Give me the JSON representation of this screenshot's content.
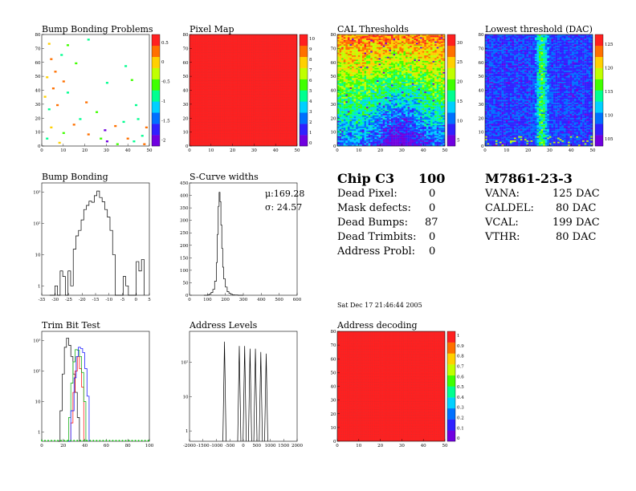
{
  "timestamp": "Sat Dec 17 21:46:44 2005",
  "chip": {
    "name": "Chip C3",
    "number": "100"
  },
  "module": {
    "name": "M7861-23-3"
  },
  "summary": [
    {
      "label": "Dead Pixel:",
      "value": "0"
    },
    {
      "label": "Mask defects:",
      "value": "0"
    },
    {
      "label": "Dead Bumps:",
      "value": "87"
    },
    {
      "label": "Dead Trimbits:",
      "value": "0"
    },
    {
      "label": "Address Probl:",
      "value": "0"
    }
  ],
  "dac_settings": [
    {
      "label": "VANA:",
      "value": "125 DAC"
    },
    {
      "label": "CALDEL:",
      "value": "80 DAC"
    },
    {
      "label": "VCAL:",
      "value": "199 DAC"
    },
    {
      "label": "VTHR:",
      "value": "80 DAC"
    }
  ],
  "colors": {
    "palette": [
      "#7000e0",
      "#3020ff",
      "#0070ff",
      "#00d0ff",
      "#00ff90",
      "#40ff00",
      "#c0ff00",
      "#ffd000",
      "#ff7000",
      "#ff2020"
    ]
  },
  "chart_data": [
    {
      "id": "bump-bonding-problems",
      "type": "heatmap",
      "title": "Bump Bonding Problems",
      "x_ticks": [
        "0",
        "10",
        "20",
        "30",
        "40",
        "50"
      ],
      "y_ticks": [
        "0",
        "10",
        "20",
        "30",
        "40",
        "50",
        "60",
        "70",
        "80"
      ],
      "colorbar_ticks": [
        "-2",
        "-1.5",
        "-1",
        "-0.5",
        "0",
        "0.5"
      ],
      "xlim": [
        0,
        52
      ],
      "ylim": [
        0,
        80
      ],
      "zlim": [
        -2,
        0.8
      ],
      "background": "empty",
      "points": [
        {
          "x": 3,
          "y": 74,
          "z": 0.2
        },
        {
          "x": 9,
          "y": 66,
          "z": -0.8
        },
        {
          "x": 12,
          "y": 73,
          "z": -0.6
        },
        {
          "x": 4,
          "y": 63,
          "z": 0.3
        },
        {
          "x": 22,
          "y": 77,
          "z": -0.8
        },
        {
          "x": 16,
          "y": 60,
          "z": -0.6
        },
        {
          "x": 6,
          "y": 54,
          "z": 0.4
        },
        {
          "x": 40,
          "y": 58,
          "z": -0.8
        },
        {
          "x": 2,
          "y": 50,
          "z": 0.1
        },
        {
          "x": 10,
          "y": 47,
          "z": 0.3
        },
        {
          "x": 31,
          "y": 46,
          "z": -0.8
        },
        {
          "x": 43,
          "y": 48,
          "z": -0.6
        },
        {
          "x": 5,
          "y": 42,
          "z": 0.3
        },
        {
          "x": 1,
          "y": 36,
          "z": 0.2
        },
        {
          "x": 12,
          "y": 39,
          "z": -0.8
        },
        {
          "x": 7,
          "y": 30,
          "z": 0.5
        },
        {
          "x": 21,
          "y": 32,
          "z": 0.3
        },
        {
          "x": 3,
          "y": 27,
          "z": -0.7
        },
        {
          "x": 18,
          "y": 20,
          "z": -0.8
        },
        {
          "x": 39,
          "y": 18,
          "z": -0.8
        },
        {
          "x": 46,
          "y": 20,
          "z": -0.7
        },
        {
          "x": 35,
          "y": 15,
          "z": 0.3
        },
        {
          "x": 30,
          "y": 12,
          "z": -1.8
        },
        {
          "x": 4,
          "y": 14,
          "z": 0.2
        },
        {
          "x": 10,
          "y": 10,
          "z": -0.6
        },
        {
          "x": 22,
          "y": 9,
          "z": 0.3
        },
        {
          "x": 28,
          "y": 6,
          "z": -0.5
        },
        {
          "x": 31,
          "y": 4,
          "z": -2.0
        },
        {
          "x": 41,
          "y": 6,
          "z": 0.5
        },
        {
          "x": 48,
          "y": 8,
          "z": -0.8
        },
        {
          "x": 44,
          "y": 4,
          "z": -0.7
        },
        {
          "x": 2,
          "y": 6,
          "z": -0.7
        },
        {
          "x": 8,
          "y": 3,
          "z": 0.2
        },
        {
          "x": 15,
          "y": 16,
          "z": 0.4
        },
        {
          "x": 26,
          "y": 25,
          "z": -0.6
        },
        {
          "x": 50,
          "y": 14,
          "z": 0.3
        },
        {
          "x": 45,
          "y": 30,
          "z": -0.8
        },
        {
          "x": 49,
          "y": 2,
          "z": 0.4
        },
        {
          "x": 36,
          "y": 2,
          "z": -0.6
        }
      ]
    },
    {
      "id": "pixel-map",
      "type": "heatmap",
      "title": "Pixel Map",
      "x_ticks": [
        "0",
        "10",
        "20",
        "30",
        "40",
        "50"
      ],
      "y_ticks": [
        "0",
        "10",
        "20",
        "30",
        "40",
        "50",
        "60",
        "70",
        "80"
      ],
      "colorbar_ticks": [
        "0",
        "1",
        "2",
        "3",
        "4",
        "5",
        "6",
        "7",
        "8",
        "9",
        "10"
      ],
      "xlim": [
        0,
        52
      ],
      "ylim": [
        0,
        80
      ],
      "zlim": [
        0,
        10
      ],
      "fill": "uniform",
      "value": 10
    },
    {
      "id": "cal-thresholds",
      "type": "heatmap",
      "title": "CAL Thresholds",
      "x_ticks": [
        "0",
        "10",
        "20",
        "30",
        "40",
        "50"
      ],
      "y_ticks": [
        "0",
        "10",
        "20",
        "30",
        "40",
        "50",
        "60",
        "70",
        "80"
      ],
      "colorbar_ticks": [
        "5",
        "10",
        "15",
        "20",
        "25",
        "30"
      ],
      "xlim": [
        0,
        52
      ],
      "ylim": [
        0,
        80
      ],
      "zlim": [
        0,
        33
      ],
      "fill": "gradient",
      "pattern": "high-top-low-bottom"
    },
    {
      "id": "lowest-threshold",
      "type": "heatmap",
      "title": "Lowest threshold (DAC)",
      "x_ticks": [
        "0",
        "10",
        "20",
        "30",
        "40",
        "50"
      ],
      "y_ticks": [
        "0",
        "10",
        "20",
        "30",
        "40",
        "50",
        "60",
        "70",
        "80"
      ],
      "colorbar_ticks": [
        "105",
        "110",
        "115",
        "120",
        "125"
      ],
      "xlim": [
        0,
        52
      ],
      "ylim": [
        0,
        80
      ],
      "zlim": [
        100,
        127
      ],
      "fill": "gradient",
      "pattern": "low-with-central-stripe"
    },
    {
      "id": "bump-bonding",
      "type": "line",
      "title": "Bump Bonding",
      "x_ticks": [
        "-35",
        "-30",
        "-25",
        "-20",
        "-15",
        "-10",
        "-5",
        "0",
        "5"
      ],
      "y_ticks": [
        "1",
        "10",
        "10²",
        "10³"
      ],
      "xlim": [
        -36,
        5
      ],
      "ylim": [
        0.5,
        2000
      ],
      "y_scale": "log",
      "x": [
        -33,
        -31,
        -30,
        -29,
        -28,
        -27,
        -26,
        -25,
        -24,
        -23,
        -22,
        -21,
        -20,
        -19,
        -18,
        -17,
        -16,
        -15,
        -14,
        -13,
        -12,
        -11,
        -10,
        -9,
        -8,
        -7,
        -6,
        -5,
        -4,
        -3,
        -2,
        -1,
        0,
        1,
        2,
        3
      ],
      "y": [
        0,
        1,
        0,
        3,
        2,
        0,
        3,
        1,
        15,
        40,
        60,
        130,
        280,
        380,
        520,
        480,
        780,
        1100,
        680,
        500,
        280,
        160,
        60,
        10,
        0,
        0,
        0,
        2,
        1,
        0,
        0,
        0,
        6,
        3,
        7,
        0
      ]
    },
    {
      "id": "s-curve-widths",
      "type": "line",
      "title": "S-Curve widths",
      "x_ticks": [
        "0",
        "100",
        "200",
        "300",
        "400",
        "500",
        "600"
      ],
      "y_ticks": [
        "0",
        "50",
        "100",
        "150",
        "200",
        "250",
        "300",
        "350",
        "400",
        "450"
      ],
      "xlim": [
        0,
        600
      ],
      "ylim": [
        0,
        480
      ],
      "stats": {
        "mean": "μ:169.28",
        "sigma": "σ: 24.57"
      },
      "x": [
        80,
        100,
        110,
        120,
        130,
        140,
        150,
        155,
        160,
        165,
        170,
        175,
        180,
        185,
        190,
        200,
        210,
        220,
        230,
        240,
        250,
        270,
        300
      ],
      "y": [
        0,
        2,
        5,
        12,
        25,
        60,
        140,
        260,
        380,
        440,
        400,
        300,
        200,
        120,
        70,
        35,
        15,
        8,
        4,
        2,
        1,
        0,
        0
      ]
    },
    {
      "id": "trim-bit-test",
      "type": "line",
      "title": "Trim Bit Test",
      "x_ticks": [
        "0",
        "20",
        "40",
        "60",
        "80",
        "100"
      ],
      "y_ticks": [
        "1",
        "10",
        "10²",
        "10³"
      ],
      "xlim": [
        0,
        100
      ],
      "ylim": [
        0.5,
        2000
      ],
      "y_scale": "log",
      "series": [
        {
          "color": "#000000",
          "x": [
            15,
            17,
            19,
            21,
            23,
            25,
            27,
            29,
            31,
            33,
            35
          ],
          "y": [
            0,
            5,
            80,
            600,
            1200,
            700,
            300,
            80,
            20,
            3,
            0
          ]
        },
        {
          "color": "#ff0000",
          "x": [
            25,
            27,
            29,
            31,
            33,
            35,
            37,
            39
          ],
          "y": [
            0,
            2,
            20,
            100,
            300,
            120,
            30,
            0
          ]
        },
        {
          "color": "#00aa00",
          "x": [
            22,
            25,
            27,
            29,
            31,
            33,
            35,
            37,
            39,
            41
          ],
          "y": [
            0,
            3,
            40,
            200,
            500,
            480,
            300,
            90,
            10,
            0
          ]
        },
        {
          "color": "#0000ff",
          "x": [
            24,
            27,
            30,
            32,
            34,
            36,
            38,
            40,
            42,
            44
          ],
          "y": [
            0,
            5,
            60,
            300,
            600,
            550,
            400,
            120,
            15,
            0
          ]
        }
      ]
    },
    {
      "id": "address-levels",
      "type": "line",
      "title": "Address Levels",
      "x_ticks": [
        "-2000",
        "-1500",
        "-1000",
        "-500",
        "0",
        "500",
        "1000",
        "1500",
        "2000"
      ],
      "y_ticks": [
        "1",
        "10",
        "10²"
      ],
      "xlim": [
        -2000,
        2000
      ],
      "ylim": [
        0.5,
        800
      ],
      "y_scale": "log",
      "peaks_x": [
        -700,
        -150,
        50,
        250,
        450,
        650,
        850
      ],
      "peaks_y": [
        400,
        300,
        300,
        250,
        250,
        200,
        180
      ]
    },
    {
      "id": "address-decoding",
      "type": "heatmap",
      "title": "Address decoding",
      "x_ticks": [
        "0",
        "10",
        "20",
        "30",
        "40",
        "50"
      ],
      "y_ticks": [
        "0",
        "10",
        "20",
        "30",
        "40",
        "50",
        "60",
        "70",
        "80"
      ],
      "colorbar_ticks": [
        "0",
        "0.1",
        "0.2",
        "0.3",
        "0.4",
        "0.5",
        "0.6",
        "0.7",
        "0.8",
        "0.9",
        "1"
      ],
      "xlim": [
        0,
        52
      ],
      "ylim": [
        0,
        80
      ],
      "zlim": [
        0,
        1
      ],
      "fill": "uniform",
      "value": 1
    }
  ]
}
